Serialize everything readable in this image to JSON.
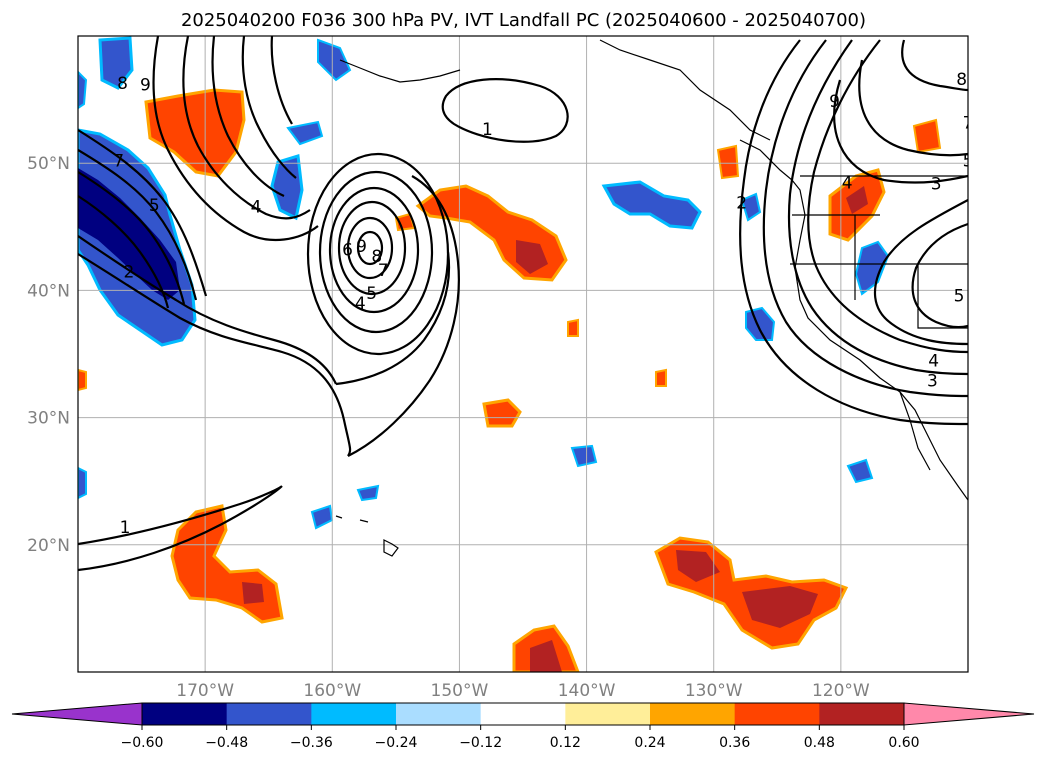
{
  "title": "2025040200 F036 300 hPa PV, IVT Landfall PC (2025040600 - 2025040700)",
  "map": {
    "lon_range": [
      -180,
      -110
    ],
    "lat_range": [
      10,
      60
    ],
    "lon_ticks": [
      {
        "lon": -170,
        "label": "170°W"
      },
      {
        "lon": -160,
        "label": "160°W"
      },
      {
        "lon": -150,
        "label": "150°W"
      },
      {
        "lon": -140,
        "label": "140°W"
      },
      {
        "lon": -130,
        "label": "130°W"
      },
      {
        "lon": -120,
        "label": "120°W"
      }
    ],
    "lat_ticks": [
      {
        "lat": 20,
        "label": "20°N"
      },
      {
        "lat": 30,
        "label": "30°N"
      },
      {
        "lat": 40,
        "label": "40°N"
      },
      {
        "lat": 50,
        "label": "50°N"
      }
    ],
    "gridlines": true,
    "colors": {
      "land_line": "#000000",
      "grid": "#b0b0b0",
      "contour": "#000000"
    }
  },
  "colorbar": {
    "levels": [
      "-0.60",
      "-0.48",
      "-0.36",
      "-0.24",
      "-0.12",
      "0.12",
      "0.24",
      "0.36",
      "0.48",
      "0.60"
    ],
    "colors": [
      "#9933cc",
      "#000080",
      "#3355cc",
      "#00bbff",
      "#aaddff",
      "#ffffff",
      "#ffee99",
      "#ffa500",
      "#ff4400",
      "#b22222",
      "#ff88aa"
    ],
    "extend": "both"
  },
  "contour_labels": [
    {
      "text": "8",
      "lon": -176.5,
      "lat": 56.3
    },
    {
      "text": "9",
      "lon": -174.7,
      "lat": 56.2
    },
    {
      "text": "7",
      "lon": -176.8,
      "lat": 50.2
    },
    {
      "text": "5",
      "lon": -174.0,
      "lat": 46.7
    },
    {
      "text": "4",
      "lon": -166.0,
      "lat": 46.6
    },
    {
      "text": "2",
      "lon": -176.0,
      "lat": 41.5
    },
    {
      "text": "1",
      "lon": -147.8,
      "lat": 52.7
    },
    {
      "text": "9",
      "lon": -157.7,
      "lat": 43.5
    },
    {
      "text": "6",
      "lon": -158.8,
      "lat": 43.2
    },
    {
      "text": "8",
      "lon": -156.5,
      "lat": 42.7
    },
    {
      "text": "7",
      "lon": -156.0,
      "lat": 41.6
    },
    {
      "text": "5",
      "lon": -156.9,
      "lat": 39.8
    },
    {
      "text": "4",
      "lon": -157.8,
      "lat": 39.0
    },
    {
      "text": "1",
      "lon": -176.3,
      "lat": 21.4
    },
    {
      "text": "9",
      "lon": -120.5,
      "lat": 54.9
    },
    {
      "text": "8",
      "lon": -110.5,
      "lat": 56.6
    },
    {
      "text": "7",
      "lon": -110.0,
      "lat": 53.2
    },
    {
      "text": "5",
      "lon": -110.0,
      "lat": 50.2
    },
    {
      "text": "4",
      "lon": -119.5,
      "lat": 48.5
    },
    {
      "text": "3",
      "lon": -112.5,
      "lat": 48.4
    },
    {
      "text": "2",
      "lon": -127.8,
      "lat": 46.9
    },
    {
      "text": "5",
      "lon": -110.7,
      "lat": 39.6
    },
    {
      "text": "4",
      "lon": -112.7,
      "lat": 34.5
    },
    {
      "text": "3",
      "lon": -112.8,
      "lat": 32.9
    }
  ]
}
